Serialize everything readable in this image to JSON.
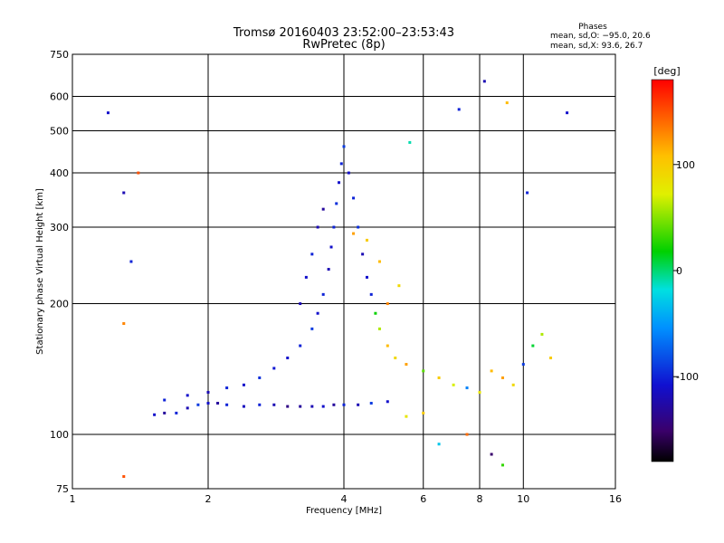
{
  "chart_data": {
    "type": "scatter",
    "title": "Tromsø 20160403 23:52:00–23:53:43",
    "subtitle": "RwPretec (8p)",
    "xlabel": "Frequency [MHz]",
    "ylabel": "Stationary phase Virtual Height [km]",
    "x_scale": "log",
    "y_scale": "log",
    "xlim": [
      1,
      16
    ],
    "ylim": [
      75,
      750
    ],
    "x_ticks": [
      1,
      2,
      4,
      6,
      8,
      10,
      16
    ],
    "x_tick_labels": [
      "1",
      "2",
      "4",
      "6",
      "8",
      "10",
      "16"
    ],
    "y_ticks": [
      75,
      100,
      200,
      300,
      400,
      500,
      600,
      750
    ],
    "y_tick_labels": [
      "75",
      "100",
      "200",
      "300",
      "400",
      "500",
      "600",
      "750"
    ],
    "grid": true,
    "phases_box": {
      "title": "Phases",
      "line_o": "mean, sd,O: −95.0, 20.6",
      "line_x": "mean, sd,X:  93.6, 26.7"
    },
    "colorbar": {
      "title": "[deg]",
      "ticks": [
        100,
        0,
        -100
      ],
      "tick_labels": [
        "100",
        "0",
        "-100"
      ],
      "range": [
        -180,
        180
      ]
    },
    "series": [
      {
        "values": [
          [
            1.52,
            111,
            -110
          ],
          [
            1.6,
            112,
            -130
          ],
          [
            1.7,
            112,
            -100
          ],
          [
            1.8,
            115,
            -120
          ],
          [
            1.9,
            117,
            -90
          ],
          [
            2.0,
            118,
            -110
          ],
          [
            2.1,
            118,
            -130
          ],
          [
            2.2,
            117,
            -100
          ],
          [
            2.4,
            116,
            -115
          ],
          [
            2.6,
            117,
            -100
          ],
          [
            2.8,
            117,
            -120
          ],
          [
            3.0,
            116,
            -140
          ],
          [
            3.2,
            116,
            -130
          ],
          [
            3.4,
            116,
            -120
          ],
          [
            3.6,
            116,
            -110
          ],
          [
            3.8,
            117,
            -130
          ],
          [
            4.0,
            117,
            -100
          ],
          [
            4.3,
            117,
            -120
          ],
          [
            4.6,
            118,
            -90
          ],
          [
            5.0,
            119,
            -110
          ],
          [
            1.6,
            120,
            -100
          ],
          [
            1.8,
            123,
            -110
          ],
          [
            2.0,
            125,
            -120
          ],
          [
            2.2,
            128,
            -100
          ],
          [
            2.4,
            130,
            -110
          ],
          [
            2.6,
            135,
            -95
          ],
          [
            2.8,
            142,
            -105
          ],
          [
            3.0,
            150,
            -110
          ],
          [
            3.2,
            160,
            -100
          ],
          [
            3.4,
            175,
            -90
          ],
          [
            3.5,
            190,
            -110
          ],
          [
            3.6,
            210,
            -100
          ],
          [
            3.7,
            240,
            -120
          ],
          [
            3.75,
            270,
            -110
          ],
          [
            3.8,
            300,
            -100
          ],
          [
            3.85,
            340,
            -95
          ],
          [
            3.9,
            380,
            -110
          ],
          [
            3.95,
            420,
            -100
          ],
          [
            4.0,
            460,
            -90
          ],
          [
            3.6,
            330,
            -130
          ],
          [
            3.5,
            300,
            -120
          ],
          [
            3.4,
            260,
            -100
          ],
          [
            3.3,
            230,
            -110
          ],
          [
            3.2,
            200,
            -120
          ],
          [
            4.1,
            400,
            -110
          ],
          [
            4.2,
            350,
            -100
          ],
          [
            4.3,
            300,
            -95
          ],
          [
            4.4,
            260,
            -120
          ],
          [
            4.5,
            230,
            -110
          ],
          [
            4.6,
            210,
            -100
          ],
          [
            4.7,
            190,
            20
          ],
          [
            4.8,
            175,
            60
          ],
          [
            5.0,
            160,
            110
          ],
          [
            5.2,
            150,
            90
          ],
          [
            5.5,
            145,
            120
          ],
          [
            6.0,
            140,
            40
          ],
          [
            6.5,
            135,
            100
          ],
          [
            7.0,
            130,
            70
          ],
          [
            7.5,
            128,
            -60
          ],
          [
            8.0,
            125,
            80
          ],
          [
            8.5,
            140,
            110
          ],
          [
            9.0,
            135,
            120
          ],
          [
            9.5,
            130,
            90
          ],
          [
            10.0,
            145,
            -90
          ],
          [
            10.5,
            160,
            10
          ],
          [
            11.0,
            170,
            60
          ],
          [
            11.5,
            150,
            100
          ],
          [
            6.5,
            95,
            -30
          ],
          [
            7.5,
            100,
            140
          ],
          [
            8.5,
            90,
            -150
          ],
          [
            9.0,
            85,
            30
          ],
          [
            5.5,
            110,
            80
          ],
          [
            6.0,
            112,
            100
          ],
          [
            1.2,
            550,
            -110
          ],
          [
            1.4,
            400,
            150
          ],
          [
            1.3,
            360,
            -120
          ],
          [
            1.35,
            250,
            -100
          ],
          [
            1.3,
            180,
            130
          ],
          [
            1.3,
            80,
            150
          ],
          [
            12.5,
            550,
            -110
          ],
          [
            8.2,
            650,
            -120
          ],
          [
            7.2,
            560,
            -100
          ],
          [
            9.2,
            580,
            110
          ],
          [
            10.2,
            360,
            -100
          ],
          [
            5.6,
            470,
            -10
          ],
          [
            4.2,
            290,
            120
          ],
          [
            4.5,
            280,
            100
          ],
          [
            4.8,
            250,
            110
          ],
          [
            5.3,
            220,
            90
          ],
          [
            5.0,
            200,
            130
          ]
        ]
      }
    ]
  }
}
